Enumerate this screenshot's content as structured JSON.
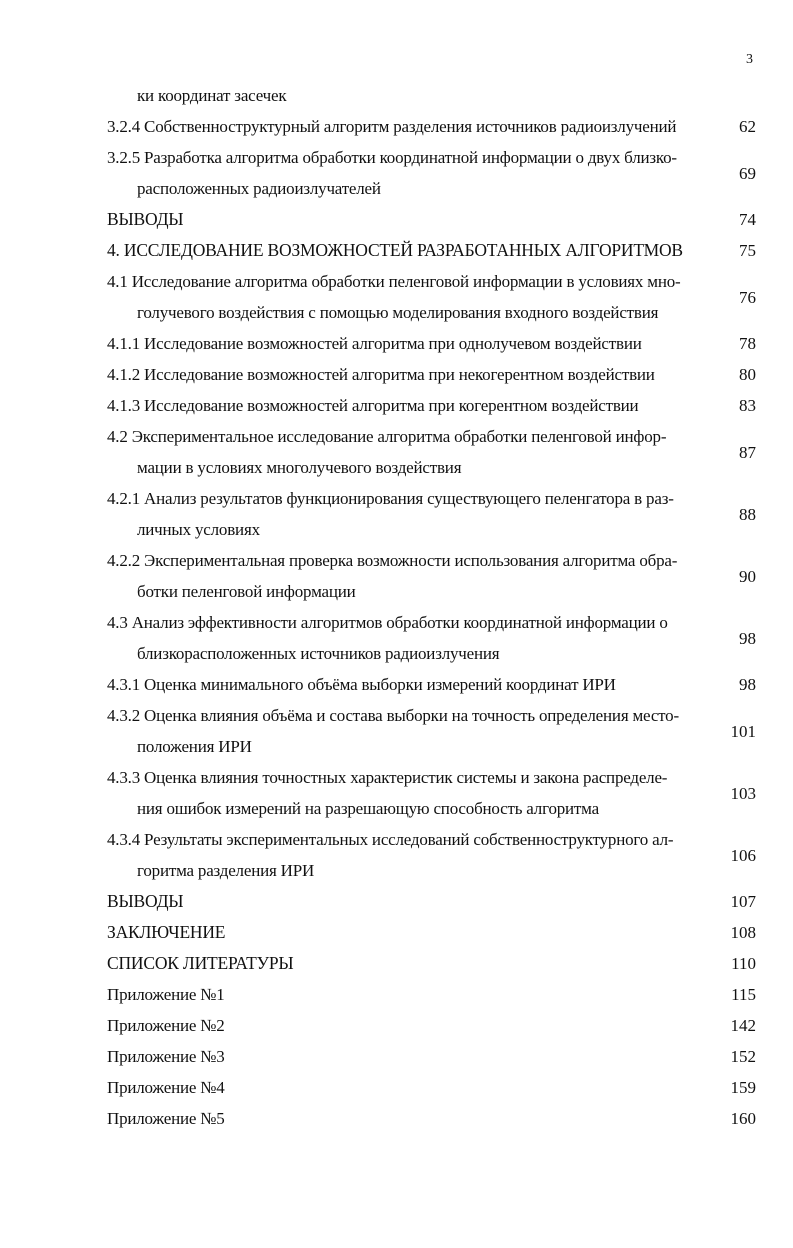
{
  "page_number": "3",
  "entries": [
    {
      "lines": [
        "ки координат засечек"
      ],
      "page": "",
      "continuation": true
    },
    {
      "lines": [
        "3.2.4 Собственноструктурный алгоритм разделения источников радиоизлучений"
      ],
      "page": "62"
    },
    {
      "lines": [
        "3.2.5 Разработка алгоритма обработки координатной информации о двух близко-",
        "расположенных радиоизлучателей"
      ],
      "page": "69"
    },
    {
      "lines": [
        "ВЫВОДЫ"
      ],
      "page": "74"
    },
    {
      "lines": [
        "4. ИССЛЕДОВАНИЕ ВОЗМОЖНОСТЕЙ РАЗРАБОТАННЫХ АЛГОРИТМОВ"
      ],
      "page": "75"
    },
    {
      "lines": [
        "4.1 Исследование алгоритма обработки пеленговой информации в условиях мно-",
        "голучевого воздействия с помощью моделирования входного воздействия"
      ],
      "page": "76"
    },
    {
      "lines": [
        "4.1.1 Исследование возможностей алгоритма при однолучевом воздействии"
      ],
      "page": "78"
    },
    {
      "lines": [
        "4.1.2 Исследование возможностей алгоритма при некогерентном воздействии"
      ],
      "page": "80"
    },
    {
      "lines": [
        "4.1.3 Исследование возможностей алгоритма при когерентном воздействии"
      ],
      "page": "83"
    },
    {
      "lines": [
        "4.2 Экспериментальное исследование алгоритма обработки пеленговой инфор-",
        "мации в условиях многолучевого воздействия"
      ],
      "page": "87"
    },
    {
      "lines": [
        "4.2.1 Анализ результатов функционирования существующего пеленгатора в раз-",
        "личных условиях"
      ],
      "page": "88"
    },
    {
      "lines": [
        "4.2.2 Экспериментальная проверка возможности использования алгоритма обра-",
        "ботки пеленговой информации"
      ],
      "page": "90"
    },
    {
      "lines": [
        "4.3 Анализ эффективности алгоритмов обработки координатной информации о",
        "близкорасположенных источников радиоизлучения"
      ],
      "page": "98"
    },
    {
      "lines": [
        "4.3.1 Оценка минимального объёма выборки измерений координат ИРИ"
      ],
      "page": "98"
    },
    {
      "lines": [
        "4.3.2 Оценка влияния объёма и состава выборки на точность определения место-",
        "положения ИРИ"
      ],
      "page": "101"
    },
    {
      "lines": [
        "4.3.3 Оценка влияния точностных характеристик системы и закона распределе-",
        "ния ошибок измерений на разрешающую способность алгоритма"
      ],
      "page": "103"
    },
    {
      "lines": [
        "4.3.4 Результаты экспериментальных исследований  собственноструктурного ал-",
        "горитма разделения ИРИ"
      ],
      "page": "106"
    },
    {
      "lines": [
        "ВЫВОДЫ"
      ],
      "page": "107"
    },
    {
      "lines": [
        "ЗАКЛЮЧЕНИЕ"
      ],
      "page": "108"
    },
    {
      "lines": [
        "СПИСОК ЛИТЕРАТУРЫ"
      ],
      "page": "110"
    },
    {
      "lines": [
        "Приложение №1"
      ],
      "page": "115"
    },
    {
      "lines": [
        "Приложение №2"
      ],
      "page": "142"
    },
    {
      "lines": [
        "Приложение №3"
      ],
      "page": "152"
    },
    {
      "lines": [
        "Приложение №4"
      ],
      "page": "159"
    },
    {
      "lines": [
        "Приложение №5"
      ],
      "page": "160"
    }
  ]
}
